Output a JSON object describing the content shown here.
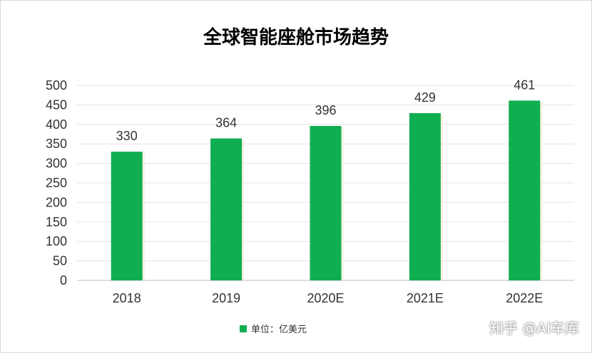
{
  "chart_data": {
    "type": "bar",
    "title": "全球智能座舱市场趋势",
    "categories": [
      "2018",
      "2019",
      "2020E",
      "2021E",
      "2022E"
    ],
    "series": [
      {
        "name": "单位：亿美元",
        "values": [
          330,
          364,
          396,
          429,
          461
        ],
        "color": "#0fae50"
      }
    ],
    "data_labels": [
      "330",
      "364",
      "396",
      "429",
      "461"
    ],
    "ylim": [
      0,
      500
    ],
    "yticks": [
      "0",
      "50",
      "100",
      "150",
      "200",
      "250",
      "300",
      "350",
      "400",
      "450",
      "500"
    ],
    "grid": true,
    "legend_position": "bottom"
  },
  "watermark": "知乎 @AI车库"
}
